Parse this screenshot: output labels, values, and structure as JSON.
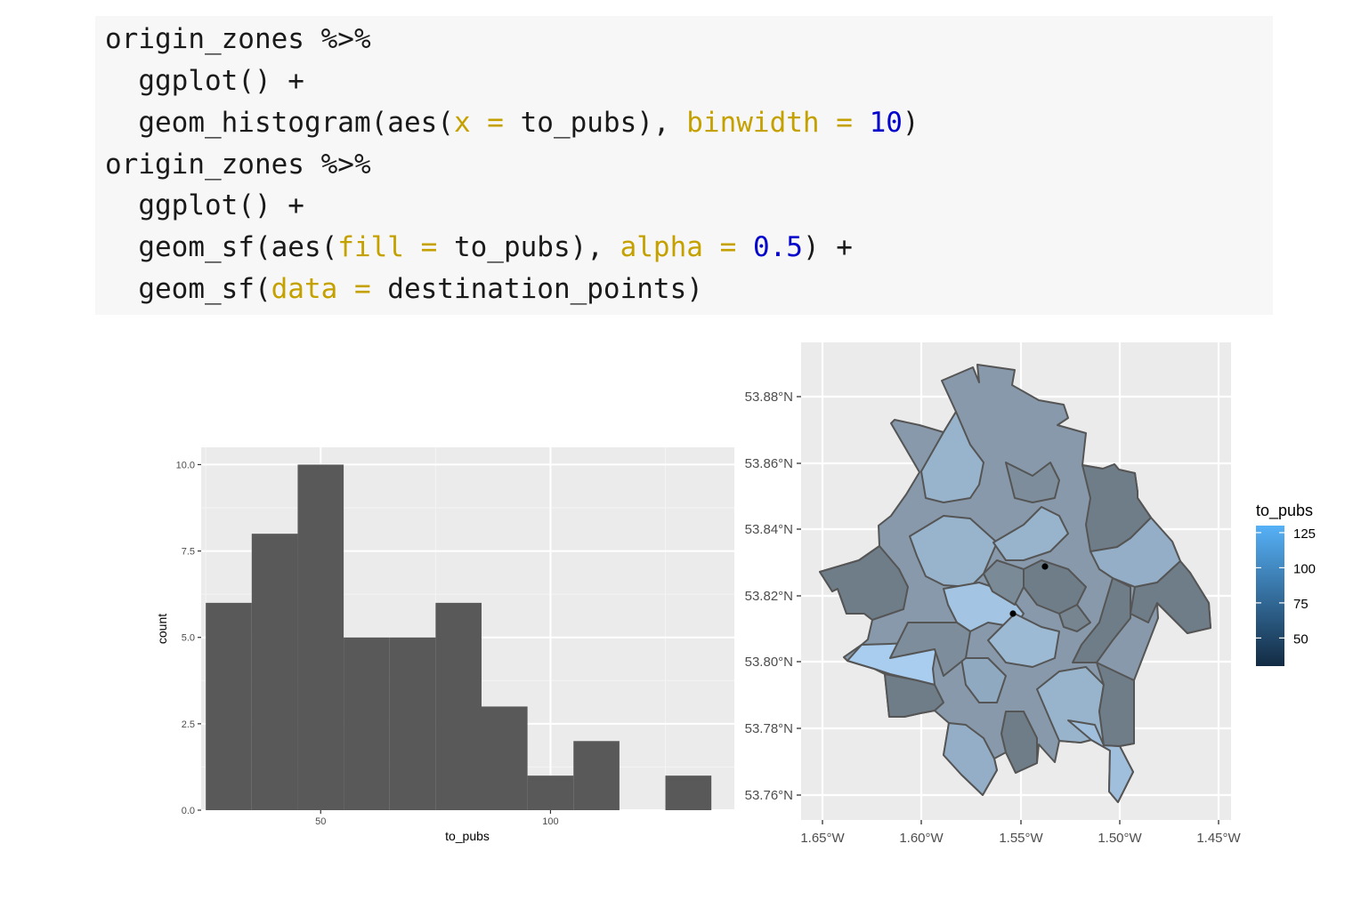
{
  "code": {
    "lines": [
      [
        {
          "t": "origin_zones %>%",
          "c": "plain"
        }
      ],
      [
        {
          "t": "  ggplot() +",
          "c": "plain"
        }
      ],
      [
        {
          "t": "  geom_histogram(aes(",
          "c": "plain"
        },
        {
          "t": "x",
          "c": "arg"
        },
        {
          "t": " ",
          "c": "plain"
        },
        {
          "t": "=",
          "c": "arg"
        },
        {
          "t": " to_pubs), ",
          "c": "plain"
        },
        {
          "t": "binwidth",
          "c": "arg"
        },
        {
          "t": " ",
          "c": "plain"
        },
        {
          "t": "=",
          "c": "arg"
        },
        {
          "t": " ",
          "c": "plain"
        },
        {
          "t": "10",
          "c": "num"
        },
        {
          "t": ")",
          "c": "plain"
        }
      ],
      [
        {
          "t": "origin_zones %>%",
          "c": "plain"
        }
      ],
      [
        {
          "t": "  ggplot() +",
          "c": "plain"
        }
      ],
      [
        {
          "t": "  geom_sf(aes(",
          "c": "plain"
        },
        {
          "t": "fill",
          "c": "arg"
        },
        {
          "t": " ",
          "c": "plain"
        },
        {
          "t": "=",
          "c": "arg"
        },
        {
          "t": " to_pubs), ",
          "c": "plain"
        },
        {
          "t": "alpha",
          "c": "arg"
        },
        {
          "t": " ",
          "c": "plain"
        },
        {
          "t": "=",
          "c": "arg"
        },
        {
          "t": " ",
          "c": "plain"
        },
        {
          "t": "0.5",
          "c": "num"
        },
        {
          "t": ") +",
          "c": "plain"
        }
      ],
      [
        {
          "t": "  geom_sf(",
          "c": "plain"
        },
        {
          "t": "data",
          "c": "arg"
        },
        {
          "t": " ",
          "c": "plain"
        },
        {
          "t": "=",
          "c": "arg"
        },
        {
          "t": " destination_points)",
          "c": "plain"
        }
      ]
    ],
    "colors": {
      "plain": "#1a1a1a",
      "arg": "#c5a100",
      "num": "#0000cc"
    }
  },
  "chart_data": [
    {
      "type": "bar",
      "xlabel": "to_pubs",
      "ylabel": "count",
      "x_ticks": [
        50,
        100
      ],
      "y_ticks": [
        0.0,
        2.5,
        5.0,
        7.5,
        10.0
      ],
      "y_tick_labels": [
        "0.0",
        "2.5",
        "5.0",
        "7.5",
        "10.0"
      ],
      "xlim": [
        24,
        140
      ],
      "ylim": [
        0,
        10.5
      ],
      "bins": [
        {
          "start": 25,
          "end": 35,
          "count": 6
        },
        {
          "start": 35,
          "end": 45,
          "count": 8
        },
        {
          "start": 45,
          "end": 55,
          "count": 10
        },
        {
          "start": 55,
          "end": 65,
          "count": 5
        },
        {
          "start": 65,
          "end": 75,
          "count": 5
        },
        {
          "start": 75,
          "end": 85,
          "count": 6
        },
        {
          "start": 85,
          "end": 95,
          "count": 3
        },
        {
          "start": 95,
          "end": 105,
          "count": 1
        },
        {
          "start": 105,
          "end": 115,
          "count": 2
        },
        {
          "start": 115,
          "end": 125,
          "count": 0
        },
        {
          "start": 125,
          "end": 135,
          "count": 1
        }
      ],
      "bar_color": "#595959",
      "panel_bg": "#ebebeb",
      "grid": true
    },
    {
      "type": "map",
      "x_tick_labels": [
        "1.65°W",
        "1.60°W",
        "1.55°W",
        "1.50°W",
        "1.45°W"
      ],
      "y_tick_labels": [
        "53.76°N",
        "53.78°N",
        "53.80°N",
        "53.82°N",
        "53.84°N",
        "53.86°N",
        "53.88°N"
      ],
      "legend": {
        "title": "to_pubs",
        "ticks": [
          50,
          75,
          100,
          125
        ],
        "range": [
          30,
          130
        ],
        "colors": {
          "low": "#132b43",
          "high": "#56b1f7"
        }
      },
      "fill_alpha": 0.5,
      "points": [
        {
          "lon": -1.537,
          "lat": 53.829
        },
        {
          "lon": -1.553,
          "lat": 53.815
        }
      ]
    }
  ]
}
